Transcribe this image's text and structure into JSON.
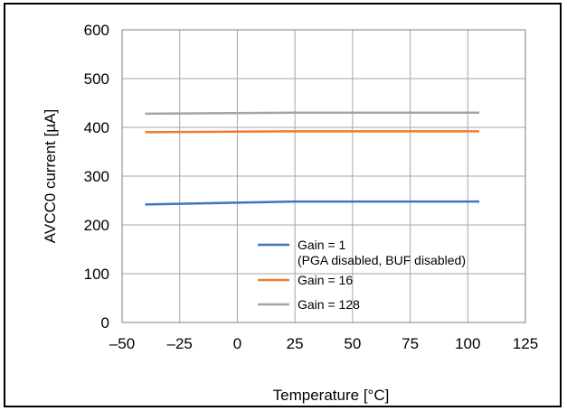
{
  "chart_data": {
    "type": "line",
    "title": "",
    "xlabel": "Temperature [°C]",
    "ylabel": "AVCC0 current [µA]",
    "xlim": [
      -50,
      125
    ],
    "ylim": [
      0,
      600
    ],
    "xticks": [
      -50,
      -25,
      0,
      25,
      50,
      75,
      100,
      125
    ],
    "yticks": [
      0,
      100,
      200,
      300,
      400,
      500,
      600
    ],
    "xtick_labels": [
      "–50",
      "–25",
      "0",
      "25",
      "50",
      "75",
      "100",
      "125"
    ],
    "ytick_labels": [
      "0",
      "100",
      "200",
      "300",
      "400",
      "500",
      "600"
    ],
    "grid": true,
    "legend_position": "bottom-right",
    "series": [
      {
        "name": "Gain = 1",
        "name_line2": "(PGA disabled, BUF disabled)",
        "color": "#4472C4",
        "x": [
          -40,
          25,
          105
        ],
        "y": [
          242,
          248,
          248
        ]
      },
      {
        "name": "Gain = 16",
        "color": "#ED7D31",
        "x": [
          -40,
          25,
          105
        ],
        "y": [
          390,
          392,
          392
        ]
      },
      {
        "name": "Gain = 128",
        "color": "#A5A5A5",
        "x": [
          -40,
          25,
          105
        ],
        "y": [
          428,
          430,
          430
        ]
      }
    ]
  }
}
